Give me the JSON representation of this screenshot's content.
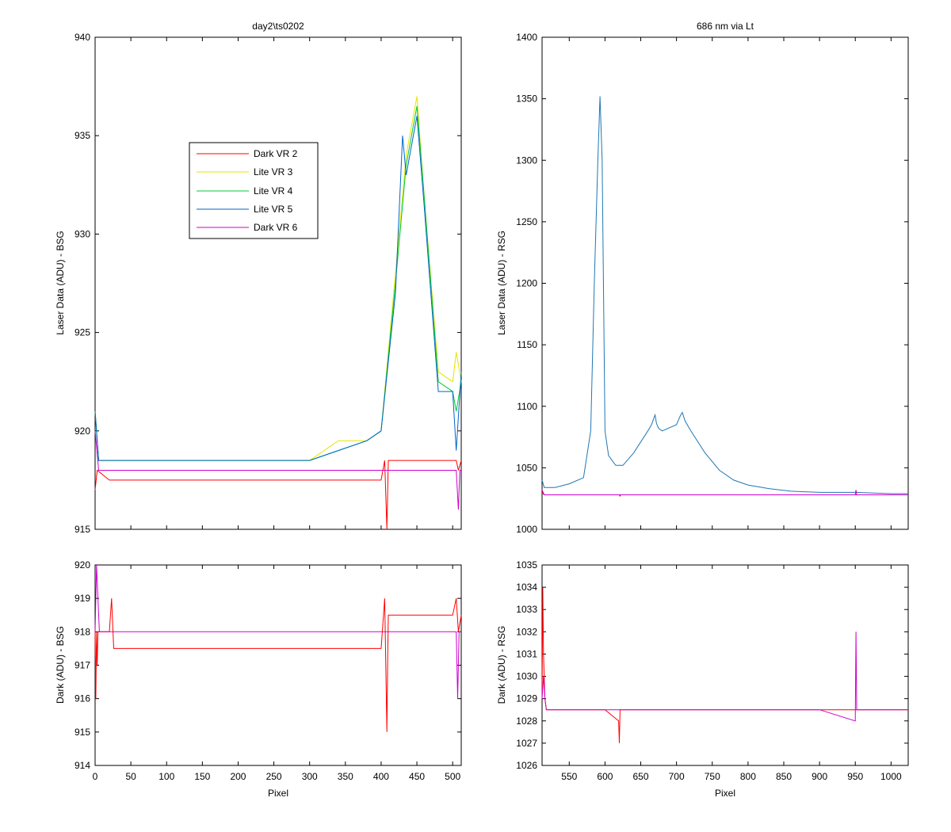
{
  "colors": {
    "dark_vr2": "#ff0000",
    "lite_vr3": "#e5e500",
    "lite_vr4": "#00cc33",
    "lite_vr5": "#0066cc",
    "dark_vr6": "#cc00cc",
    "rsg_laser": "#1f77b4"
  },
  "chart_data": [
    {
      "id": "tl",
      "type": "line",
      "title": "day2\\ts0202",
      "xlabel": "",
      "ylabel": "Laser Data (ADU) - BSG",
      "xlim": [
        0,
        512
      ],
      "ylim": [
        915,
        940
      ],
      "xticks": [
        0,
        50,
        100,
        150,
        200,
        250,
        300,
        350,
        400,
        450,
        500
      ],
      "yticks": [
        915,
        920,
        925,
        930,
        935,
        940
      ],
      "show_xtick_labels": false,
      "legend": {
        "placement": "upper-left-center",
        "entries": [
          "Dark VR 2",
          "Lite VR 3",
          "Lite VR 4",
          "Lite VR 5",
          "Dark VR 6"
        ]
      },
      "series": [
        {
          "name": "Dark VR 2",
          "color_key": "dark_vr2",
          "x": [
            0,
            3,
            20,
            100,
            200,
            300,
            400,
            405,
            408,
            410,
            450,
            505,
            508,
            512
          ],
          "y": [
            917,
            918,
            917.5,
            917.5,
            917.5,
            917.5,
            917.5,
            918.5,
            915,
            918.5,
            918.5,
            918.5,
            918,
            918.5
          ]
        },
        {
          "name": "Lite VR 3",
          "color_key": "lite_vr3",
          "x": [
            0,
            5,
            100,
            200,
            300,
            340,
            380,
            400,
            420,
            435,
            450,
            460,
            480,
            500,
            505,
            512
          ],
          "y": [
            921,
            918.5,
            918.5,
            918.5,
            918.5,
            919.5,
            919.5,
            920,
            928,
            934,
            937,
            932,
            923,
            922.5,
            924,
            922.5
          ]
        },
        {
          "name": "Lite VR 4",
          "color_key": "lite_vr4",
          "x": [
            0,
            5,
            100,
            200,
            300,
            340,
            380,
            400,
            420,
            435,
            450,
            460,
            480,
            500,
            505,
            512
          ],
          "y": [
            921,
            918.5,
            918.5,
            918.5,
            918.5,
            919,
            919.5,
            920,
            927.5,
            933.5,
            936.5,
            932,
            922.5,
            922,
            921,
            922.5
          ]
        },
        {
          "name": "Lite VR 5",
          "color_key": "lite_vr5",
          "x": [
            0,
            5,
            100,
            200,
            300,
            340,
            380,
            400,
            420,
            430,
            435,
            450,
            460,
            480,
            500,
            505,
            512
          ],
          "y": [
            921,
            918.5,
            918.5,
            918.5,
            918.5,
            919,
            919.5,
            920,
            927,
            935,
            933,
            936,
            931.5,
            922,
            922,
            919,
            923
          ]
        },
        {
          "name": "Dark VR 6",
          "color_key": "dark_vr6",
          "x": [
            0,
            5,
            100,
            200,
            300,
            400,
            410,
            450,
            505,
            508,
            510,
            512
          ],
          "y": [
            920,
            918,
            918,
            918,
            918,
            918,
            918,
            918,
            918,
            916,
            918,
            918
          ]
        }
      ]
    },
    {
      "id": "tr",
      "type": "line",
      "title": "686 nm via Lt",
      "xlabel": "",
      "ylabel": "Laser Data (ADU) - RSG",
      "xlim": [
        512,
        1024
      ],
      "ylim": [
        1000,
        1400
      ],
      "xticks": [
        550,
        600,
        650,
        700,
        750,
        800,
        850,
        900,
        950,
        1000
      ],
      "yticks": [
        1000,
        1050,
        1100,
        1150,
        1200,
        1250,
        1300,
        1350,
        1400
      ],
      "show_xtick_labels": false,
      "series": [
        {
          "name": "",
          "color_key": "rsg_laser",
          "x": [
            512,
            515,
            530,
            550,
            570,
            580,
            585,
            590,
            593,
            596,
            600,
            605,
            615,
            625,
            640,
            660,
            665,
            668,
            670,
            672,
            675,
            680,
            700,
            705,
            708,
            712,
            720,
            740,
            760,
            780,
            800,
            830,
            860,
            900,
            950,
            1000,
            1024
          ],
          "y": [
            1040,
            1034,
            1034,
            1037,
            1042,
            1080,
            1200,
            1300,
            1352,
            1300,
            1080,
            1060,
            1052,
            1052,
            1062,
            1080,
            1085,
            1090,
            1093,
            1086,
            1082,
            1080,
            1085,
            1092,
            1095,
            1088,
            1080,
            1062,
            1048,
            1040,
            1036,
            1033,
            1031,
            1030,
            1030,
            1029,
            1029
          ]
        },
        {
          "name": "",
          "color_key": "dark_vr2",
          "x": [
            512,
            515,
            600,
            620,
            621,
            622,
            700,
            800,
            900,
            1000,
            1024
          ],
          "y": [
            1030,
            1028,
            1028,
            1028,
            1027,
            1028,
            1028,
            1028,
            1028,
            1028,
            1028
          ]
        },
        {
          "name": "",
          "color_key": "dark_vr6",
          "x": [
            512,
            515,
            600,
            700,
            800,
            900,
            950,
            951,
            952,
            1000,
            1024
          ],
          "y": [
            1032,
            1028,
            1028,
            1028,
            1028,
            1028,
            1028,
            1032,
            1028,
            1028,
            1028
          ]
        }
      ]
    },
    {
      "id": "bl",
      "type": "line",
      "title": "",
      "xlabel": "Pixel",
      "ylabel": "Dark (ADU) - BSG",
      "xlim": [
        0,
        512
      ],
      "ylim": [
        914,
        920
      ],
      "xticks": [
        0,
        50,
        100,
        150,
        200,
        250,
        300,
        350,
        400,
        450,
        500
      ],
      "yticks": [
        914,
        915,
        916,
        917,
        918,
        919,
        920
      ],
      "show_xtick_labels": true,
      "series": [
        {
          "name": "Dark VR 2",
          "color_key": "dark_vr2",
          "x": [
            0,
            1,
            2,
            3,
            4,
            5,
            8,
            20,
            23,
            26,
            100,
            200,
            300,
            400,
            405,
            408,
            409,
            410,
            412,
            420,
            500,
            505,
            508,
            512
          ],
          "y": [
            918,
            916,
            918,
            917,
            918,
            918,
            918,
            918,
            919,
            917.5,
            917.5,
            917.5,
            917.5,
            917.5,
            919,
            915,
            917,
            918.5,
            918.5,
            918.5,
            918.5,
            919,
            918,
            918.5
          ]
        },
        {
          "name": "Dark VR 6",
          "color_key": "dark_vr6",
          "x": [
            0,
            2,
            4,
            6,
            8,
            100,
            200,
            300,
            400,
            450,
            500,
            505,
            507,
            509,
            512
          ],
          "y": [
            918,
            920,
            919,
            918,
            918,
            918,
            918,
            918,
            918,
            918,
            918,
            918,
            916,
            918,
            918
          ]
        }
      ]
    },
    {
      "id": "br",
      "type": "line",
      "title": "",
      "xlabel": "Pixel",
      "ylabel": "Dark (ADU) - RSG",
      "xlim": [
        512,
        1024
      ],
      "ylim": [
        1026,
        1035
      ],
      "xticks": [
        550,
        600,
        650,
        700,
        750,
        800,
        850,
        900,
        950,
        1000
      ],
      "yticks": [
        1026,
        1027,
        1028,
        1029,
        1030,
        1031,
        1032,
        1033,
        1034,
        1035
      ],
      "show_xtick_labels": true,
      "series": [
        {
          "name": "Dark VR 2",
          "color_key": "dark_vr2",
          "x": [
            512,
            513,
            514,
            516,
            518,
            600,
            619,
            620,
            621,
            700,
            800,
            900,
            1000,
            1024
          ],
          "y": [
            1029,
            1034,
            1031,
            1029,
            1028.5,
            1028.5,
            1028,
            1027,
            1028.5,
            1028.5,
            1028.5,
            1028.5,
            1028.5,
            1028.5
          ]
        },
        {
          "name": "Dark VR 6",
          "color_key": "dark_vr6",
          "x": [
            512,
            514,
            516,
            518,
            600,
            700,
            800,
            900,
            950,
            951,
            952,
            1000,
            1024
          ],
          "y": [
            1029,
            1030,
            1029,
            1028.5,
            1028.5,
            1028.5,
            1028.5,
            1028.5,
            1028,
            1032,
            1028.5,
            1028.5,
            1028.5
          ]
        }
      ]
    }
  ]
}
